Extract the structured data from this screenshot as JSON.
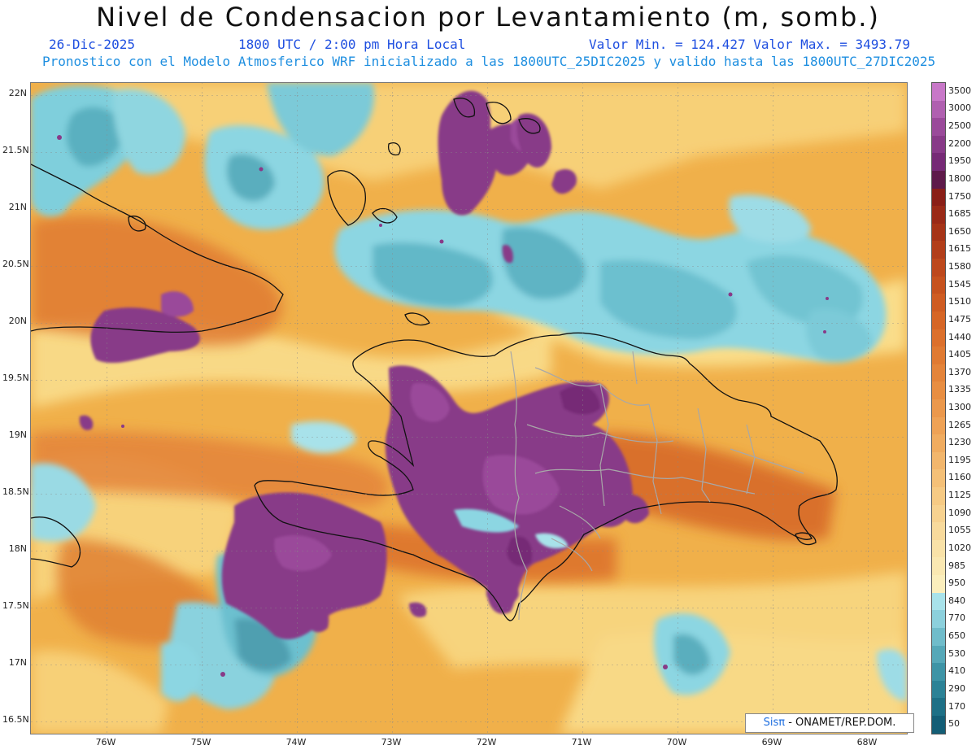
{
  "title": "Nivel de Condensacion por Levantamiento (m, somb.)",
  "date": "26-Dic-2025",
  "time": "1800 UTC / 2:00 pm Hora Local",
  "minmax": "Valor Min. = 124.427  Valor Max. = 3493.79",
  "subtitle": "Pronostico con el Modelo Atmosferico WRF inicializado a las 1800UTC_25DIC2025 y valido hasta las  1800UTC_27DIC2025",
  "credit": {
    "logo": "Sisπ",
    "text": " - ONAMET/REP.DOM."
  },
  "lat_labels": [
    "22N",
    "21.5N",
    "21N",
    "20.5N",
    "20N",
    "19.5N",
    "19N",
    "18.5N",
    "18N",
    "17.5N",
    "17N",
    "16.5N"
  ],
  "lon_labels": [
    "76W",
    "75W",
    "74W",
    "73W",
    "72W",
    "71W",
    "70W",
    "69W",
    "68W"
  ],
  "colorbar": {
    "labels": [
      "3500",
      "3000",
      "2500",
      "2200",
      "1950",
      "1800",
      "1750",
      "1685",
      "1650",
      "1615",
      "1580",
      "1545",
      "1510",
      "1475",
      "1440",
      "1405",
      "1370",
      "1335",
      "1300",
      "1265",
      "1230",
      "1195",
      "1160",
      "1125",
      "1090",
      "1055",
      "1020",
      "985",
      "950",
      "840",
      "770",
      "650",
      "530",
      "410",
      "290",
      "170",
      "50"
    ],
    "colors": [
      "#c878c8",
      "#b060b0",
      "#9a4a9a",
      "#883a88",
      "#762a76",
      "#5e1a4a",
      "#8a1f18",
      "#9a2a18",
      "#a63418",
      "#b23e1a",
      "#bd481c",
      "#c6521e",
      "#cf5c22",
      "#d66626",
      "#dc702c",
      "#e07a32",
      "#e4843a",
      "#e88e42",
      "#eb984c",
      "#eea256",
      "#f0ac60",
      "#f2b66c",
      "#f4c078",
      "#f6ca84",
      "#f7d290",
      "#f8da9c",
      "#f9e2a8",
      "#fae8b2",
      "#fbeebc",
      "#a8e2ea",
      "#8cd0dc",
      "#70bcca",
      "#56a8b8",
      "#3e94a6",
      "#2c8296",
      "#1e7086",
      "#145e76"
    ]
  }
}
